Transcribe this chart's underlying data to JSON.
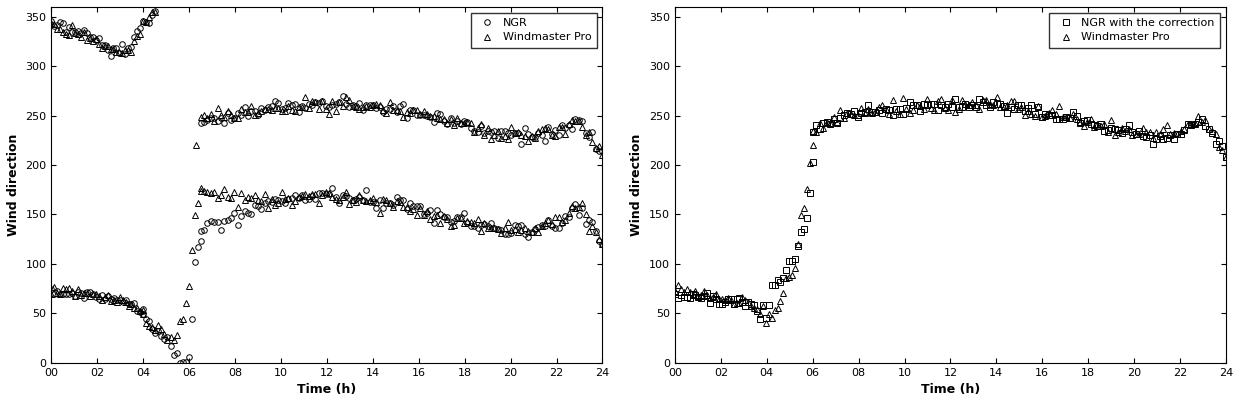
{
  "xlim": [
    0,
    24
  ],
  "ylim": [
    0,
    360
  ],
  "yticks": [
    0,
    50,
    100,
    150,
    200,
    250,
    300,
    350
  ],
  "xticks": [
    0,
    2,
    4,
    6,
    8,
    10,
    12,
    14,
    16,
    18,
    20,
    22,
    24
  ],
  "xlabel": "Time (h)",
  "ylabel": "Wind direction",
  "legend1": [
    "NGR",
    "Windmaster Pro"
  ],
  "legend2": [
    "NGR with the correction",
    "Windmaster Pro"
  ],
  "markersize": 4,
  "color": "black",
  "facecolor": "none",
  "background": "white",
  "figsize": [
    12.4,
    4.03
  ],
  "dpi": 100
}
